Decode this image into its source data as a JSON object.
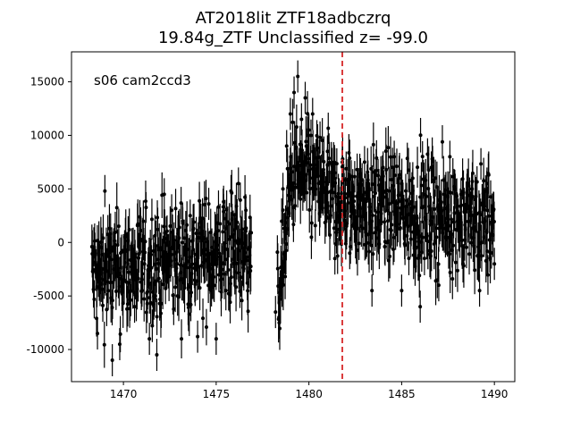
{
  "chart_data": {
    "type": "scatter",
    "title_line1": "AT2018lit  ZTF18adbczrq",
    "title_line2": "19.84g_ZTF Unclassified z= -99.0",
    "annotation": "s06 cam2ccd3",
    "xlabel": "",
    "ylabel": "",
    "xlim": [
      1467.2,
      1491.1
    ],
    "ylim": [
      -13000,
      17800
    ],
    "x_ticks": [
      1470,
      1475,
      1480,
      1485,
      1490
    ],
    "y_ticks": [
      -10000,
      -5000,
      0,
      5000,
      10000,
      15000
    ],
    "vline": {
      "x": 1481.8,
      "color": "#d62728",
      "style": "dashed"
    },
    "marker_color": "#000000",
    "segments": [
      {
        "x_start": 1468.3,
        "x_end": 1476.9,
        "trend_start": -3000,
        "trend_end": -500,
        "noise": 2600,
        "err": 1900
      },
      {
        "x_start": 1478.3,
        "x_end": 1479.0,
        "trend_start": -6000,
        "trend_end": 4500,
        "noise": 2200,
        "err": 1900
      },
      {
        "x_start": 1479.0,
        "x_end": 1481.0,
        "trend_start": 6500,
        "trend_end": 4800,
        "noise": 2600,
        "err": 1900
      },
      {
        "x_start": 1481.0,
        "x_end": 1490.0,
        "trend_start": 4000,
        "trend_end": 1800,
        "noise": 2500,
        "err": 1900
      }
    ],
    "points": [
      [
        1468.6,
        -8500
      ],
      [
        1469.0,
        4800
      ],
      [
        1469.4,
        -11000
      ],
      [
        1469.8,
        -9500
      ],
      [
        1470.6,
        -6000
      ],
      [
        1471.0,
        -4500
      ],
      [
        1471.4,
        -9000
      ],
      [
        1471.8,
        -10500
      ],
      [
        1472.2,
        4500
      ],
      [
        1472.6,
        3000
      ],
      [
        1473.2,
        1800
      ],
      [
        1473.6,
        2500
      ],
      [
        1474.0,
        -8800
      ],
      [
        1474.6,
        3600
      ],
      [
        1475.0,
        -9000
      ],
      [
        1475.4,
        3800
      ],
      [
        1475.8,
        4800
      ],
      [
        1476.2,
        5500
      ],
      [
        1476.6,
        3000
      ],
      [
        1478.2,
        -6500
      ],
      [
        1478.4,
        -7500
      ],
      [
        1478.6,
        5000
      ],
      [
        1478.8,
        9000
      ],
      [
        1479.0,
        12000
      ],
      [
        1479.2,
        14000
      ],
      [
        1479.4,
        15500
      ],
      [
        1479.6,
        11500
      ],
      [
        1479.8,
        13500
      ],
      [
        1480.0,
        10500
      ],
      [
        1480.2,
        12000
      ],
      [
        1480.6,
        9800
      ],
      [
        1481.0,
        8500
      ],
      [
        1481.4,
        -1500
      ],
      [
        1481.8,
        7500
      ],
      [
        1482.2,
        -1000
      ],
      [
        1482.6,
        6800
      ],
      [
        1483.0,
        7500
      ],
      [
        1483.4,
        -4500
      ],
      [
        1484.0,
        7000
      ],
      [
        1484.6,
        8000
      ],
      [
        1485.0,
        -4500
      ],
      [
        1485.6,
        6000
      ],
      [
        1486.0,
        -6000
      ],
      [
        1486.6,
        7000
      ],
      [
        1487.0,
        -4000
      ],
      [
        1487.6,
        8000
      ],
      [
        1488.2,
        4500
      ],
      [
        1488.8,
        5000
      ],
      [
        1489.2,
        -4500
      ],
      [
        1489.6,
        5500
      ],
      [
        1490.0,
        -2000
      ]
    ]
  }
}
